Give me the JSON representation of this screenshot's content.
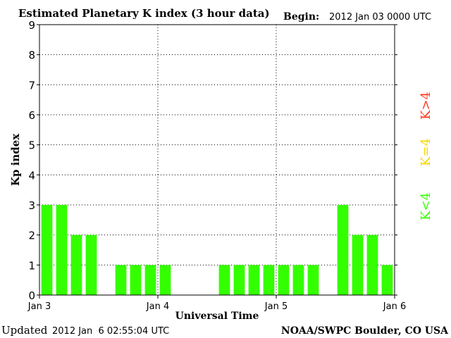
{
  "header": {
    "title": "Estimated Planetary K index (3 hour data)",
    "begin_label": "Begin:",
    "begin_value": "2012 Jan 03 0000 UTC"
  },
  "footer": {
    "updated_label": "Updated",
    "updated_value": "2012 Jan  6 02:55:04 UTC",
    "source": "NOAA/SWPC Boulder, CO USA"
  },
  "legend": {
    "high": {
      "label": "K>4",
      "color": "#ff3b1f"
    },
    "equal": {
      "label": "K=4",
      "color": "#f5d700"
    },
    "low": {
      "label": "K<4",
      "color": "#33ff00"
    }
  },
  "chart_data": {
    "type": "bar",
    "ylabel": "Kp index",
    "xlabel": "Universal Time",
    "ylim": [
      0,
      9
    ],
    "y_ticks": [
      "0",
      "1",
      "2",
      "3",
      "4",
      "5",
      "6",
      "7",
      "8",
      "9"
    ],
    "x_ticks": [
      "Jan 3",
      "Jan 4",
      "Jan 5",
      "Jan 6"
    ],
    "grid": true,
    "bar_color": "#33ff00",
    "series": [
      {
        "values": [
          3,
          3,
          2,
          2,
          null,
          1,
          1,
          1,
          1,
          null,
          null,
          null,
          1,
          1,
          1,
          1,
          1,
          1,
          1,
          null,
          3,
          2,
          2,
          1
        ]
      }
    ]
  }
}
